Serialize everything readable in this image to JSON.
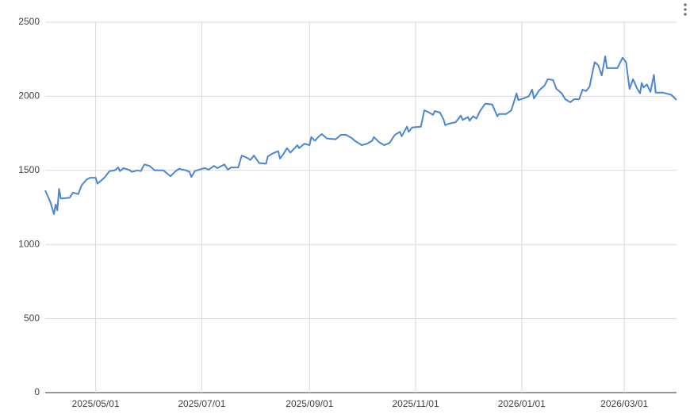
{
  "chart_data": {
    "type": "line",
    "x": [
      "2025/04/02",
      "2025/04/05",
      "2025/04/07",
      "2025/04/08",
      "2025/04/09",
      "2025/04/10",
      "2025/04/11",
      "2025/04/16",
      "2025/04/18",
      "2025/04/21",
      "2025/04/23",
      "2025/04/26",
      "2025/04/28",
      "2025/05/01",
      "2025/05/02",
      "2025/05/06",
      "2025/05/09",
      "2025/05/12",
      "2025/05/14",
      "2025/05/15",
      "2025/05/17",
      "2025/05/20",
      "2025/05/22",
      "2025/05/25",
      "2025/05/27",
      "2025/05/29",
      "2025/06/01",
      "2025/06/04",
      "2025/06/09",
      "2025/06/11",
      "2025/06/13",
      "2025/06/16",
      "2025/06/18",
      "2025/06/22",
      "2025/06/24",
      "2025/06/25",
      "2025/06/27",
      "2025/07/01",
      "2025/07/03",
      "2025/07/05",
      "2025/07/08",
      "2025/07/10",
      "2025/07/14",
      "2025/07/16",
      "2025/07/18",
      "2025/07/22",
      "2025/07/24",
      "2025/07/27",
      "2025/07/29",
      "2025/07/31",
      "2025/08/03",
      "2025/08/07",
      "2025/08/08",
      "2025/08/11",
      "2025/08/14",
      "2025/08/15",
      "2025/08/17",
      "2025/08/19",
      "2025/08/21",
      "2025/08/25",
      "2025/08/26",
      "2025/08/29",
      "2025/09/01",
      "2025/09/02",
      "2025/09/04",
      "2025/09/06",
      "2025/09/08",
      "2025/09/11",
      "2025/09/16",
      "2025/09/19",
      "2025/09/22",
      "2025/09/25",
      "2025/09/27",
      "2025/10/01",
      "2025/10/04",
      "2025/10/07",
      "2025/10/08",
      "2025/10/11",
      "2025/10/14",
      "2025/10/17",
      "2025/10/20",
      "2025/10/23",
      "2025/10/24",
      "2025/10/27",
      "2025/10/28",
      "2025/10/30",
      "2025/11/04",
      "2025/11/06",
      "2025/11/08",
      "2025/11/11",
      "2025/11/12",
      "2025/11/15",
      "2025/11/17",
      "2025/11/18",
      "2025/11/20",
      "2025/11/24",
      "2025/11/27",
      "2025/11/28",
      "2025/12/01",
      "2025/12/02",
      "2025/12/04",
      "2025/12/06",
      "2025/12/08",
      "2025/12/11",
      "2025/12/15",
      "2025/12/18",
      "2025/12/19",
      "2025/12/23",
      "2025/12/26",
      "2025/12/29",
      "2025/12/30",
      "2026/01/02",
      "2026/01/05",
      "2026/01/07",
      "2026/01/08",
      "2026/01/11",
      "2026/01/14",
      "2026/01/16",
      "2026/01/19",
      "2026/01/21",
      "2026/01/24",
      "2026/01/26",
      "2026/01/29",
      "2026/01/31",
      "2026/02/03",
      "2026/02/05",
      "2026/02/07",
      "2026/02/09",
      "2026/02/10",
      "2026/02/12",
      "2026/02/14",
      "2026/02/16",
      "2026/02/18",
      "2026/02/19",
      "2026/02/25",
      "2026/02/28",
      "2026/03/02",
      "2026/03/04",
      "2026/03/06",
      "2026/03/08",
      "2026/03/10",
      "2026/03/11",
      "2026/03/12",
      "2026/03/14",
      "2026/03/16",
      "2026/03/18",
      "2026/03/19",
      "2026/03/23",
      "2026/03/28",
      "2026/03/31"
    ],
    "series": [
      {
        "color": "#4a86d4",
        "values": [
          1365,
          1285,
          1205,
          1270,
          1230,
          1375,
          1310,
          1315,
          1350,
          1340,
          1400,
          1440,
          1450,
          1450,
          1410,
          1450,
          1495,
          1500,
          1520,
          1495,
          1515,
          1505,
          1490,
          1500,
          1495,
          1540,
          1530,
          1500,
          1500,
          1480,
          1460,
          1495,
          1510,
          1500,
          1490,
          1455,
          1495,
          1510,
          1515,
          1505,
          1530,
          1515,
          1540,
          1505,
          1520,
          1520,
          1600,
          1585,
          1570,
          1600,
          1550,
          1545,
          1595,
          1615,
          1630,
          1580,
          1610,
          1650,
          1620,
          1670,
          1650,
          1680,
          1670,
          1725,
          1700,
          1725,
          1745,
          1715,
          1710,
          1740,
          1740,
          1720,
          1700,
          1670,
          1680,
          1700,
          1725,
          1690,
          1670,
          1685,
          1740,
          1760,
          1730,
          1795,
          1760,
          1790,
          1795,
          1905,
          1895,
          1875,
          1900,
          1890,
          1845,
          1805,
          1815,
          1825,
          1870,
          1840,
          1860,
          1835,
          1865,
          1850,
          1900,
          1950,
          1945,
          1865,
          1880,
          1880,
          1905,
          2020,
          1975,
          1985,
          2000,
          2045,
          1985,
          2040,
          2070,
          2115,
          2110,
          2050,
          2020,
          1980,
          1960,
          1980,
          1980,
          2045,
          2035,
          2065,
          2125,
          2230,
          2210,
          2140,
          2270,
          2190,
          2190,
          2260,
          2230,
          2050,
          2115,
          2060,
          2020,
          2090,
          2060,
          2080,
          2030,
          2145,
          2025,
          2025,
          2010,
          1975
        ]
      }
    ],
    "xlim": [
      "2025/04/02",
      "2026/03/31"
    ],
    "xticks": [
      "2025/05/01",
      "2025/07/01",
      "2025/09/01",
      "2025/11/01",
      "2026/01/01",
      "2026/03/01"
    ],
    "ylim": [
      0,
      2500
    ],
    "yticks": [
      0,
      500,
      1000,
      1500,
      2000,
      2500
    ],
    "grid": true
  }
}
